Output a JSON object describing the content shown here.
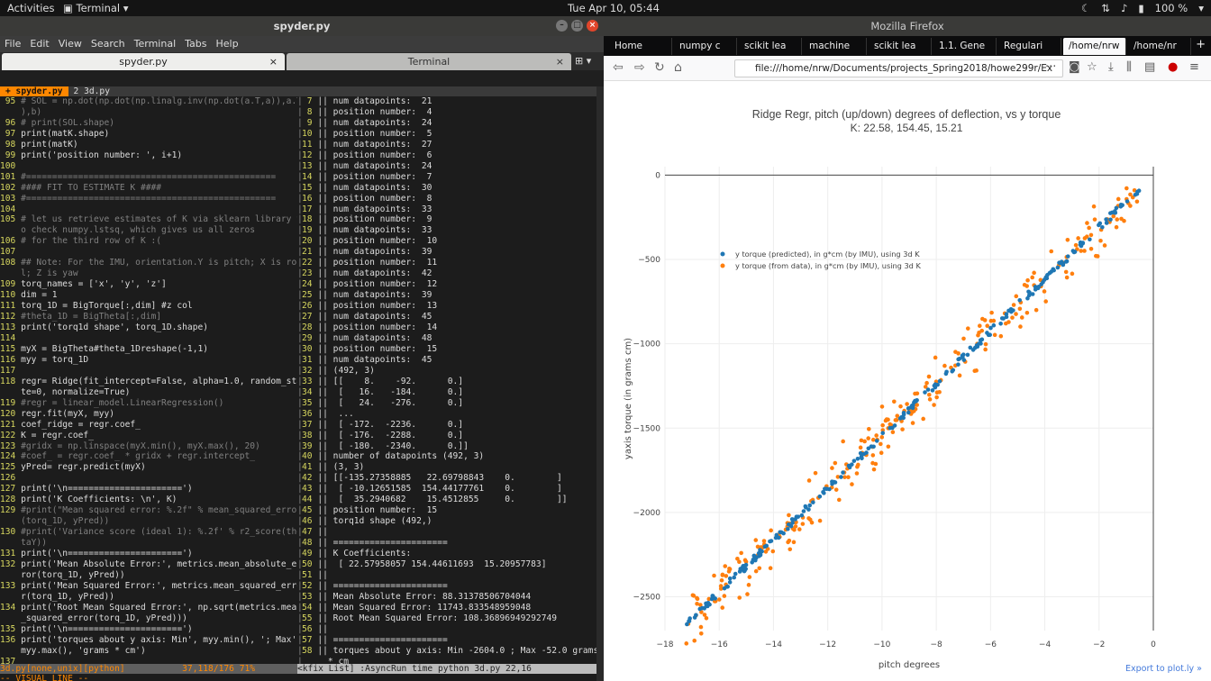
{
  "topbar": {
    "activities": "Activities",
    "app": "Terminal",
    "clock": "Tue Apr 10, 05:44",
    "battery": "100 %"
  },
  "terminal": {
    "title": "spyder.py",
    "menu": [
      "File",
      "Edit",
      "View",
      "Search",
      "Terminal",
      "Tabs",
      "Help"
    ],
    "tab_active": "spyder.py",
    "tab_inactive": "Terminal",
    "vim_tab1": "+ spyder.py",
    "vim_tab2": "2 3d.py",
    "left_lines": [
      [
        "95",
        " # SOL = np.dot(np.dot(np.linalg.inv(np.dot(a.T,a)),a.T",
        "c"
      ],
      [
        "",
        " ),b)",
        "c"
      ],
      [
        "96",
        " # print(SOL.shape)",
        "c"
      ],
      [
        "97",
        " print(matK.shape)",
        ""
      ],
      [
        "98",
        " print(matK)",
        ""
      ],
      [
        "99",
        " print('position number: ', i+1)",
        ""
      ],
      [
        "100",
        "",
        ""
      ],
      [
        "101",
        " #================================================",
        "c"
      ],
      [
        "102",
        " #### FIT TO ESTIMATE K ####",
        "c"
      ],
      [
        "103",
        " #================================================",
        "c"
      ],
      [
        "104",
        "",
        ""
      ],
      [
        "105",
        " # let us retrieve estimates of K via sklearn library t",
        "c"
      ],
      [
        "",
        " o check numpy.lstsq, which gives us all zeros",
        "c"
      ],
      [
        "106",
        " # for the third row of K :(",
        "c"
      ],
      [
        "107",
        "",
        ""
      ],
      [
        "108",
        " ## Note: For the IMU, orientation.Y is pitch; X is rol",
        "c"
      ],
      [
        "",
        " l; Z is yaw",
        "c"
      ],
      [
        "109",
        " torq_names = ['x', 'y', 'z']",
        ""
      ],
      [
        "110",
        " dim = 1",
        ""
      ],
      [
        "111",
        " torq_1D = BigTorque[:,dim] #z col",
        ""
      ],
      [
        "112",
        " #theta_1D = BigTheta[:,dim]",
        "c"
      ],
      [
        "113",
        " print('torq1d shape', torq_1D.shape)",
        ""
      ],
      [
        "114",
        "",
        ""
      ],
      [
        "115",
        " myX = BigTheta#theta_1Dreshape(-1,1)",
        ""
      ],
      [
        "116",
        " myy = torq_1D",
        ""
      ],
      [
        "117",
        "",
        ""
      ],
      [
        "118",
        " regr= Ridge(fit_intercept=False, alpha=1.0, random_sta",
        ""
      ],
      [
        "",
        " te=0, normalize=True)",
        ""
      ],
      [
        "119",
        " #regr = linear_model.LinearRegression()",
        "c"
      ],
      [
        "120",
        " regr.fit(myX, myy)",
        ""
      ],
      [
        "121",
        " coef_ridge = regr.coef_",
        ""
      ],
      [
        "122",
        " K = regr.coef_",
        ""
      ],
      [
        "123",
        " #gridx = np.linspace(myX.min(), myX.max(), 20)",
        "c"
      ],
      [
        "124",
        " #coef_ = regr.coef_ * gridx + regr.intercept_",
        "c"
      ],
      [
        "125",
        " yPred= regr.predict(myX)",
        ""
      ],
      [
        "126",
        "",
        ""
      ],
      [
        "127",
        " print('\\n======================')",
        ""
      ],
      [
        "128",
        " print('K Coefficients: \\n', K)",
        ""
      ],
      [
        "129",
        " #print(\"Mean squared error: %.2f\" % mean_squared_error",
        "c"
      ],
      [
        "",
        " (torq_1D, yPred))",
        "c"
      ],
      [
        "130",
        " #print('Variance score (ideal 1): %.2f' % r2_score(the",
        "c"
      ],
      [
        "",
        " taY))",
        "c"
      ],
      [
        "131",
        " print('\\n======================')",
        ""
      ],
      [
        "132",
        " print('Mean Absolute Error:', metrics.mean_absolute_er",
        ""
      ],
      [
        "",
        " ror(torq_1D, yPred))",
        ""
      ],
      [
        "133",
        " print('Mean Squared Error:', metrics.mean_squared_erro",
        ""
      ],
      [
        "",
        " r(torq_1D, yPred))",
        ""
      ],
      [
        "134",
        " print('Root Mean Squared Error:', np.sqrt(metrics.mean",
        ""
      ],
      [
        "",
        " _squared_error(torq_1D, yPred)))",
        ""
      ],
      [
        "135",
        " print('\\n======================')",
        ""
      ],
      [
        "136",
        " print('torques about y axis: Min', myy.min(), '; Max',",
        ""
      ],
      [
        "",
        " myy.max(), 'grams * cm')",
        ""
      ],
      [
        "137",
        "",
        ""
      ],
      [
        "138",
        " #gridx = np.linspace(myX.min(), myX.max(), 20)",
        "c"
      ]
    ],
    "right_lines": [
      [
        "7",
        "|| num datapoints:  21"
      ],
      [
        "8",
        "|| position number:  4"
      ],
      [
        "9",
        "|| num datapoints:  24"
      ],
      [
        "10",
        "|| position number:  5"
      ],
      [
        "11",
        "|| num datapoints:  27"
      ],
      [
        "12",
        "|| position number:  6"
      ],
      [
        "13",
        "|| num datapoints:  24"
      ],
      [
        "14",
        "|| position number:  7"
      ],
      [
        "15",
        "|| num datapoints:  30"
      ],
      [
        "16",
        "|| position number:  8"
      ],
      [
        "17",
        "|| num datapoints:  33"
      ],
      [
        "18",
        "|| position number:  9"
      ],
      [
        "19",
        "|| num datapoints:  33"
      ],
      [
        "20",
        "|| position number:  10"
      ],
      [
        "21",
        "|| num datapoints:  39"
      ],
      [
        "22",
        "|| position number:  11"
      ],
      [
        "23",
        "|| num datapoints:  42"
      ],
      [
        "24",
        "|| position number:  12"
      ],
      [
        "25",
        "|| num datapoints:  39"
      ],
      [
        "26",
        "|| position number:  13"
      ],
      [
        "27",
        "|| num datapoints:  45"
      ],
      [
        "28",
        "|| position number:  14"
      ],
      [
        "29",
        "|| num datapoints:  48"
      ],
      [
        "30",
        "|| position number:  15"
      ],
      [
        "31",
        "|| num datapoints:  45"
      ],
      [
        "32",
        "|| (492, 3)"
      ],
      [
        "33",
        "|| [[    8.    -92.      0.]"
      ],
      [
        "34",
        "||  [   16.   -184.      0.]"
      ],
      [
        "35",
        "||  [   24.   -276.      0.]"
      ],
      [
        "36",
        "||  ..."
      ],
      [
        "37",
        "||  [ -172.  -2236.      0.]"
      ],
      [
        "38",
        "||  [ -176.  -2288.      0.]"
      ],
      [
        "39",
        "||  [ -180.  -2340.      0.]]"
      ],
      [
        "40",
        "|| number of datapoints (492, 3)"
      ],
      [
        "41",
        "|| (3, 3)"
      ],
      [
        "42",
        "|| [[-135.27358885   22.69798843    0.        ]"
      ],
      [
        "43",
        "||  [ -10.12651585  154.44177761    0.        ]"
      ],
      [
        "44",
        "||  [  35.2940682    15.4512855     0.        ]]"
      ],
      [
        "45",
        "|| position number:  15"
      ],
      [
        "46",
        "|| torq1d shape (492,)"
      ],
      [
        "47",
        "||"
      ],
      [
        "48",
        "|| ======================"
      ],
      [
        "49",
        "|| K Coefficients:"
      ],
      [
        "50",
        "||  [ 22.57958057 154.44611693  15.20957783]"
      ],
      [
        "51",
        "||"
      ],
      [
        "52",
        "|| ======================"
      ],
      [
        "53",
        "|| Mean Absolute Error: 88.31378506704044"
      ],
      [
        "54",
        "|| Mean Squared Error: 11743.833548959048"
      ],
      [
        "55",
        "|| Root Mean Squared Error: 108.36896949292749"
      ],
      [
        "56",
        "||"
      ],
      [
        "57",
        "|| ======================"
      ],
      [
        "58",
        "|| torques about y axis: Min -2604.0 ; Max -52.0 grams"
      ],
      [
        "",
        "  * cm"
      ],
      [
        "59",
        "||"
      ]
    ],
    "status_left": "3d.py[none,unix][python]           37,118/176 71%",
    "status_right": "<kfix List] :AsyncRun time python 3d.py 22,16             60%",
    "cmdline": "-- VISUAL LINE --"
  },
  "firefox": {
    "title": "Mozilla Firefox",
    "tabs": [
      "Home",
      "numpy c",
      "scikit lea",
      "machine",
      "scikit lea",
      "1.1. Gene",
      "Regulari",
      "/home/nrw",
      "/home/nr"
    ],
    "url": "file:///home/nrw/Documents/projects_Spring2018/howe299r/Ex",
    "export": "Export to plot.ly »"
  },
  "chart_data": {
    "type": "scatter",
    "title": "Ridge Regr, pitch (up/down) degrees of deflection, vs y torque",
    "subtitle": "K: 22.58, 154.45, 15.21",
    "xlabel": "pitch degrees",
    "ylabel": "yaxis torque (in grams cm)",
    "xlim": [
      -18,
      0
    ],
    "ylim": [
      -2700,
      50
    ],
    "xticks": [
      -18,
      -16,
      -14,
      -12,
      -10,
      -8,
      -6,
      -4,
      -2,
      0
    ],
    "yticks": [
      0,
      -500,
      -1000,
      -1500,
      -2000,
      -2500
    ],
    "grid": true,
    "legend_position": "upper-left",
    "series": [
      {
        "name": "y torque (predicted), in g*cm (by IMU), using 3d K",
        "color": "#1f77b4",
        "slope": 154.45,
        "x_range": [
          -17.2,
          -0.5
        ]
      },
      {
        "name": "y torque (from data), in g*cm (by IMU), using 3d K",
        "color": "#ff7f0e",
        "slope": 154.45,
        "x_range": [
          -17.2,
          -0.5
        ],
        "spread": 110
      }
    ]
  }
}
